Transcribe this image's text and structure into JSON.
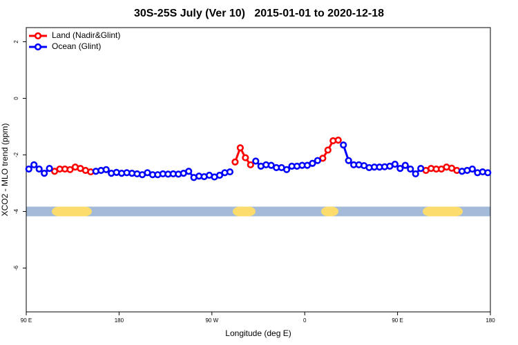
{
  "chart_data": {
    "type": "line",
    "title": "30S-25S July (Ver 10)   2015-01-01 to 2020-12-18",
    "x_label": "Longitude (deg E)",
    "y_label": "XCO2 - MLO trend (ppm)",
    "xlim": [
      90,
      540
    ],
    "ylim": [
      -7.55,
      2.5
    ],
    "xticks": [
      {
        "value": 90,
        "label": "90 E"
      },
      {
        "value": 180,
        "label": "180"
      },
      {
        "value": 270,
        "label": "90 W"
      },
      {
        "value": 360,
        "label": "0"
      },
      {
        "value": 450,
        "label": "90 E"
      },
      {
        "value": 540,
        "label": "180"
      }
    ],
    "yticks": [
      -6,
      -4,
      -2,
      0,
      2
    ],
    "legend": "top-left",
    "x": [
      92.5,
      97.5,
      102.5,
      107.5,
      112.5,
      117.5,
      122.5,
      127.5,
      132.5,
      137.5,
      142.5,
      147.5,
      152.5,
      157.5,
      162.5,
      167.5,
      172.5,
      177.5,
      182.5,
      187.5,
      192.5,
      197.5,
      202.5,
      207.5,
      212.5,
      217.5,
      222.5,
      227.5,
      232.5,
      237.5,
      242.5,
      247.5,
      252.5,
      257.5,
      262.5,
      267.5,
      272.5,
      277.5,
      282.5,
      287.5,
      292.5,
      297.5,
      302.5,
      307.5,
      312.5,
      317.5,
      322.5,
      327.5,
      332.5,
      337.5,
      342.5,
      347.5,
      352.5,
      357.5,
      362.5,
      367.5,
      372.5,
      377.5,
      382.5,
      387.5,
      392.5,
      397.5,
      402.5,
      407.5,
      412.5,
      417.5,
      422.5,
      427.5,
      432.5,
      437.5,
      442.5,
      447.5,
      452.5,
      457.5,
      462.5,
      467.5,
      472.5,
      477.5,
      482.5,
      487.5,
      492.5,
      497.5,
      502.5,
      507.5,
      512.5,
      517.5,
      522.5,
      527.5,
      532.5,
      537.5
    ],
    "series": [
      {
        "name": "Land (Nadir&Glint)",
        "color": "#ff0000",
        "values": [
          null,
          null,
          null,
          null,
          null,
          -2.58,
          -2.5,
          -2.5,
          -2.52,
          -2.43,
          -2.48,
          -2.55,
          -2.6,
          null,
          null,
          null,
          null,
          null,
          null,
          null,
          null,
          null,
          null,
          null,
          null,
          null,
          null,
          null,
          null,
          null,
          null,
          null,
          null,
          null,
          null,
          null,
          null,
          null,
          null,
          null,
          -2.25,
          -1.75,
          -2.1,
          -2.35,
          null,
          null,
          null,
          null,
          null,
          null,
          null,
          null,
          null,
          null,
          null,
          null,
          null,
          -2.12,
          -1.83,
          -1.5,
          -1.48,
          null,
          null,
          null,
          null,
          null,
          null,
          null,
          null,
          null,
          null,
          null,
          null,
          null,
          null,
          null,
          null,
          -2.55,
          -2.48,
          -2.5,
          -2.5,
          -2.43,
          -2.47,
          -2.55,
          null,
          null,
          null,
          null,
          null,
          null
        ]
      },
      {
        "name": "Ocean (Glint)",
        "color": "#0000ff",
        "values": [
          -2.5,
          -2.35,
          -2.5,
          -2.65,
          -2.48,
          null,
          null,
          null,
          null,
          null,
          null,
          null,
          null,
          -2.58,
          -2.55,
          -2.52,
          -2.65,
          -2.62,
          -2.65,
          -2.63,
          -2.65,
          -2.67,
          -2.7,
          -2.63,
          -2.7,
          -2.7,
          -2.67,
          -2.68,
          -2.67,
          -2.68,
          -2.65,
          -2.58,
          -2.8,
          -2.75,
          -2.77,
          -2.72,
          -2.78,
          -2.72,
          -2.63,
          -2.6,
          null,
          null,
          null,
          null,
          -2.22,
          -2.4,
          -2.35,
          -2.37,
          -2.45,
          -2.45,
          -2.52,
          -2.4,
          -2.4,
          -2.37,
          -2.37,
          -2.3,
          -2.2,
          null,
          null,
          null,
          null,
          -1.65,
          -2.2,
          -2.35,
          -2.35,
          -2.38,
          -2.45,
          -2.43,
          -2.43,
          -2.42,
          -2.4,
          -2.33,
          -2.48,
          -2.37,
          -2.5,
          -2.67,
          -2.48,
          null,
          null,
          null,
          null,
          null,
          null,
          null,
          -2.58,
          -2.55,
          -2.5,
          -2.63,
          -2.6,
          -2.63
        ]
      }
    ],
    "surface_bands": {
      "y": -4,
      "ocean_color": "#a3bbd9",
      "land_color": "#fddc6e",
      "land": [
        [
          114.8,
          153.6
        ],
        [
          290.2,
          312.3
        ],
        [
          375.9,
          392.7
        ],
        [
          474.4,
          513.2
        ]
      ]
    }
  }
}
